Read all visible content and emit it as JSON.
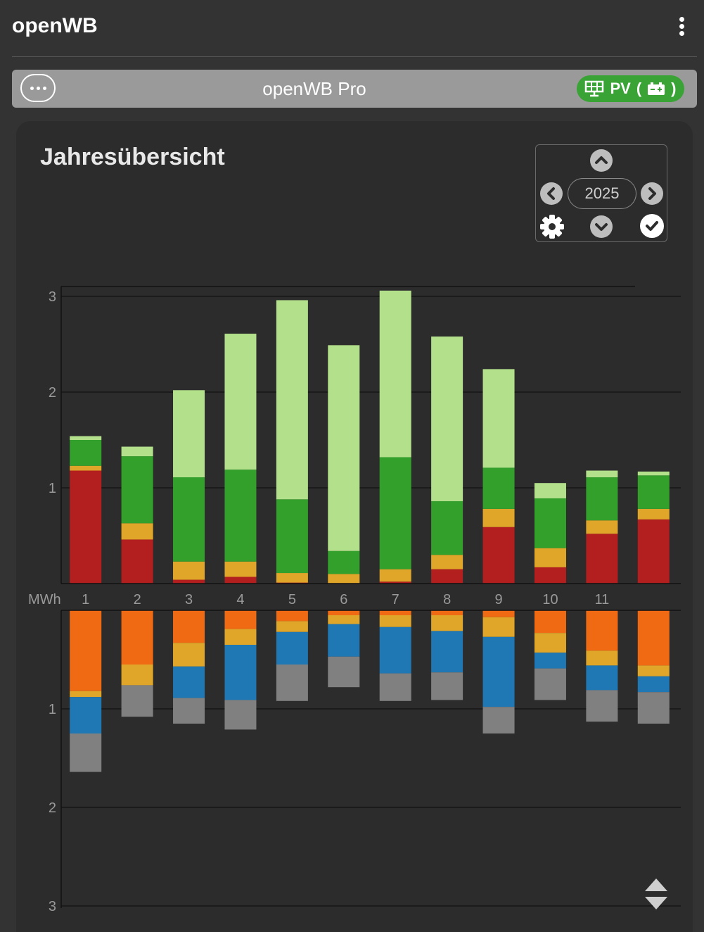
{
  "app": {
    "title": "openWB"
  },
  "device": {
    "name": "openWB Pro",
    "badge_label": "PV",
    "badge_icons": [
      "solar-panel-icon",
      "battery-icon"
    ]
  },
  "panel": {
    "title": "Jahresübersicht"
  },
  "datepicker": {
    "year": "2025"
  },
  "colors": {
    "pv": "#b3e08b",
    "self_consumption": "#33a02c",
    "battery_charge": "#dfa62a",
    "grid_import": "#b31e1e",
    "grid_export": "#f06a14",
    "charging": "#1f78b4",
    "house": "#808080"
  },
  "chart_data": {
    "type": "bar",
    "stacked": true,
    "unit": "MWh",
    "categories": [
      "1",
      "2",
      "3",
      "4",
      "5",
      "6",
      "7",
      "8",
      "9",
      "10",
      "11",
      ""
    ],
    "upper_ylim": [
      0,
      3
    ],
    "lower_ylim": [
      0,
      3
    ],
    "upper_yticks": [
      "1",
      "2",
      "3"
    ],
    "lower_yticks": [
      "1",
      "2",
      "3"
    ],
    "upper_series": [
      {
        "key": "grid_import",
        "values": [
          1.18,
          0.46,
          0.04,
          0.07,
          0.01,
          0.0,
          0.02,
          0.15,
          0.59,
          0.17,
          0.52,
          0.67
        ]
      },
      {
        "key": "battery_charge",
        "values": [
          0.05,
          0.17,
          0.19,
          0.16,
          0.1,
          0.1,
          0.13,
          0.15,
          0.19,
          0.2,
          0.14,
          0.11
        ]
      },
      {
        "key": "self_consumption",
        "values": [
          0.27,
          0.7,
          0.88,
          0.96,
          0.77,
          0.24,
          1.17,
          0.56,
          0.43,
          0.52,
          0.45,
          0.35
        ]
      },
      {
        "key": "pv",
        "values": [
          0.04,
          0.1,
          0.91,
          1.42,
          2.08,
          2.15,
          1.74,
          1.72,
          1.03,
          0.16,
          0.07,
          0.04
        ]
      }
    ],
    "lower_series": [
      {
        "key": "grid_export",
        "values": [
          0.82,
          0.55,
          0.33,
          0.19,
          0.11,
          0.05,
          0.05,
          0.05,
          0.07,
          0.23,
          0.41,
          0.56
        ]
      },
      {
        "key": "battery_charge",
        "values": [
          0.06,
          0.21,
          0.24,
          0.16,
          0.11,
          0.09,
          0.12,
          0.16,
          0.2,
          0.2,
          0.15,
          0.11
        ]
      },
      {
        "key": "charging",
        "values": [
          0.37,
          0.0,
          0.32,
          0.56,
          0.33,
          0.33,
          0.47,
          0.42,
          0.71,
          0.16,
          0.25,
          0.16
        ]
      },
      {
        "key": "house",
        "values": [
          0.39,
          0.32,
          0.26,
          0.3,
          0.37,
          0.31,
          0.28,
          0.28,
          0.27,
          0.32,
          0.32,
          0.32
        ]
      }
    ]
  }
}
